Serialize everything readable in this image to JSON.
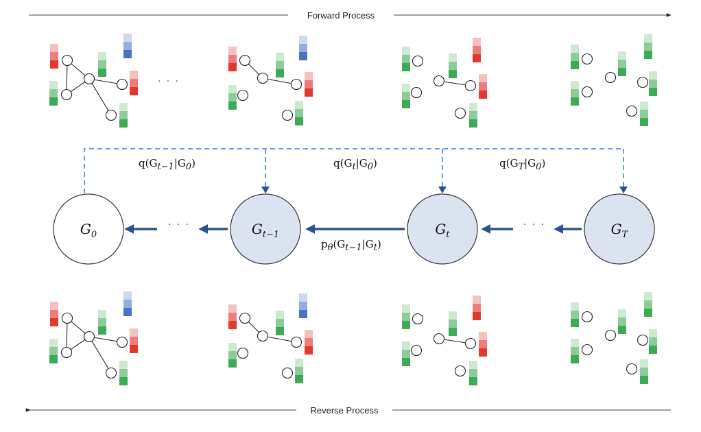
{
  "title_forward": "Forward Process",
  "title_reverse": "Reverse Process",
  "ellipsis": "· · ·",
  "states": {
    "g0": {
      "symbol": "G",
      "sub": "0"
    },
    "gt1": {
      "symbol": "G",
      "sub": "t−1"
    },
    "gt": {
      "symbol": "G",
      "sub": "t"
    },
    "gT": {
      "symbol": "G",
      "sub": "T"
    }
  },
  "transitions": {
    "q_t1": {
      "pre": "q(G",
      "sub1": "t−1",
      "mid": "|G",
      "sub2": "0",
      "post": ")"
    },
    "q_t": {
      "pre": "q(G",
      "sub1": "t",
      "mid": "|G",
      "sub2": "0",
      "post": ")"
    },
    "q_T": {
      "pre": "q(G",
      "sub1": "T",
      "mid": "|G",
      "sub2": "0",
      "post": ")"
    },
    "p_theta": {
      "pre": "p",
      "psub": "θ",
      "open": "(G",
      "sub1": "t−1",
      "mid": "|G",
      "sub2": "t",
      "post": ")"
    }
  },
  "colors": {
    "node_fill": "#dce3f0",
    "arrow": "#2f4f8f",
    "dashed": "#6f9bd1",
    "green": [
      "#cfe8d4",
      "#8ccc99",
      "#3daa55"
    ],
    "red": [
      "#f5c0c0",
      "#ee7c7c",
      "#e03a2e"
    ],
    "blue": [
      "#cdd7ee",
      "#96acdc",
      "#4a72c4"
    ]
  }
}
